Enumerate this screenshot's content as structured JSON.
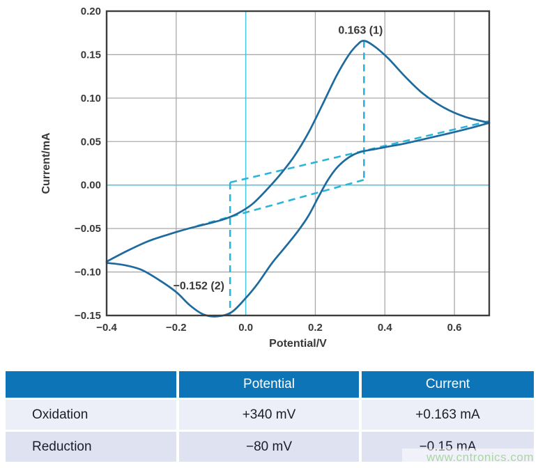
{
  "watermark": "www.cntronics.com",
  "watermark_color": "#a9d6a2",
  "chart_data": {
    "type": "line",
    "title": "",
    "xlabel": "Potential/V",
    "ylabel": "Current/mA",
    "xlim": [
      -0.4,
      0.7
    ],
    "ylim": [
      -0.15,
      0.2
    ],
    "x_ticks": [
      {
        "v": -0.4,
        "label": "−0.4"
      },
      {
        "v": -0.2,
        "label": "−0.2"
      },
      {
        "v": 0.0,
        "label": "0.0"
      },
      {
        "v": 0.2,
        "label": "0.2"
      },
      {
        "v": 0.4,
        "label": "0.4"
      },
      {
        "v": 0.6,
        "label": "0.6"
      }
    ],
    "y_ticks": [
      {
        "v": 0.2,
        "label": "0.20"
      },
      {
        "v": 0.15,
        "label": "0.15"
      },
      {
        "v": 0.1,
        "label": "0.10"
      },
      {
        "v": 0.05,
        "label": "0.05"
      },
      {
        "v": 0.0,
        "label": "0.00"
      },
      {
        "v": -0.05,
        "label": "−0.05"
      },
      {
        "v": -0.1,
        "label": "−0.10"
      },
      {
        "v": -0.15,
        "label": "−0.15"
      }
    ],
    "x_gridlines": [
      -0.2,
      0.2,
      0.4,
      0.6
    ],
    "y_gridlines": [
      0.15,
      0.1,
      0.05,
      -0.05,
      -0.1
    ],
    "zero_lines": true,
    "series": [
      {
        "name": "anodic-sweep",
        "points": [
          [
            -0.4,
            -0.088
          ],
          [
            -0.34,
            -0.0755
          ],
          [
            -0.28,
            -0.0645
          ],
          [
            -0.22,
            -0.0565
          ],
          [
            -0.16,
            -0.0495
          ],
          [
            -0.11,
            -0.0445
          ],
          [
            -0.06,
            -0.039
          ],
          [
            -0.02,
            -0.032
          ],
          [
            0.02,
            -0.0215
          ],
          [
            0.06,
            -0.0055
          ],
          [
            0.1,
            0.0125
          ],
          [
            0.14,
            0.0335
          ],
          [
            0.18,
            0.06
          ],
          [
            0.22,
            0.092
          ],
          [
            0.26,
            0.125
          ],
          [
            0.295,
            0.149
          ],
          [
            0.32,
            0.161
          ],
          [
            0.34,
            0.166
          ],
          [
            0.37,
            0.1595
          ],
          [
            0.41,
            0.1455
          ],
          [
            0.46,
            0.124
          ],
          [
            0.51,
            0.105
          ],
          [
            0.57,
            0.089
          ],
          [
            0.63,
            0.0785
          ],
          [
            0.7,
            0.0715
          ]
        ]
      },
      {
        "name": "cathodic-sweep",
        "points": [
          [
            0.7,
            0.0715
          ],
          [
            0.64,
            0.065
          ],
          [
            0.58,
            0.059
          ],
          [
            0.52,
            0.0535
          ],
          [
            0.46,
            0.048
          ],
          [
            0.4,
            0.0435
          ],
          [
            0.36,
            0.0405
          ],
          [
            0.335,
            0.0385
          ],
          [
            0.31,
            0.035
          ],
          [
            0.285,
            0.0285
          ],
          [
            0.26,
            0.019
          ],
          [
            0.235,
            0.005
          ],
          [
            0.21,
            -0.013
          ],
          [
            0.18,
            -0.0355
          ],
          [
            0.15,
            -0.053
          ],
          [
            0.11,
            -0.073
          ],
          [
            0.075,
            -0.09
          ],
          [
            0.035,
            -0.113
          ],
          [
            0.0,
            -0.13
          ],
          [
            -0.04,
            -0.146
          ],
          [
            -0.08,
            -0.151
          ],
          [
            -0.12,
            -0.149
          ],
          [
            -0.16,
            -0.1385
          ],
          [
            -0.2,
            -0.123
          ],
          [
            -0.25,
            -0.109
          ],
          [
            -0.3,
            -0.0975
          ],
          [
            -0.35,
            -0.092
          ],
          [
            -0.4,
            -0.0895
          ]
        ]
      }
    ],
    "guides": {
      "vertical": [
        {
          "x": 0.34,
          "y1": 0.166,
          "y2": 0.006
        },
        {
          "x": -0.045,
          "y1": 0.003,
          "y2": -0.149
        }
      ],
      "diagonal": [
        {
          "x1": -0.045,
          "y1": 0.003,
          "x2": 0.7,
          "y2": 0.0735
        },
        {
          "x1": -0.14,
          "y1": -0.047,
          "x2": 0.34,
          "y2": 0.006
        }
      ]
    },
    "annotations": [
      {
        "text": "0.163 (1)",
        "x": 0.33,
        "y": 0.178
      },
      {
        "text": "−0.152 (2)",
        "x": -0.135,
        "y": -0.116
      }
    ],
    "peaks": {
      "oxidation": {
        "potential_V": 0.34,
        "current_mA": 0.163
      },
      "reduction": {
        "potential_V": -0.08,
        "current_mA": -0.152
      }
    },
    "colors": {
      "curve": "#1d6a9f",
      "guide": "#2ab5d8",
      "zero_line": "#45c5e0",
      "grid": "#a9a9a9",
      "frame": "#3d3d3d",
      "tick_text": "#383838"
    }
  },
  "table": {
    "header": [
      "",
      "Potential",
      "Current"
    ],
    "rows": [
      {
        "label": "Oxidation",
        "potential": "+340 mV",
        "current": "+0.163 mA"
      },
      {
        "label": "Reduction",
        "potential": "−80 mV",
        "current": "−0.15 mA"
      }
    ],
    "header_bg": "#0e74b8",
    "row_bg_odd": "#edeff8",
    "row_bg_even": "#dfe3f1"
  }
}
